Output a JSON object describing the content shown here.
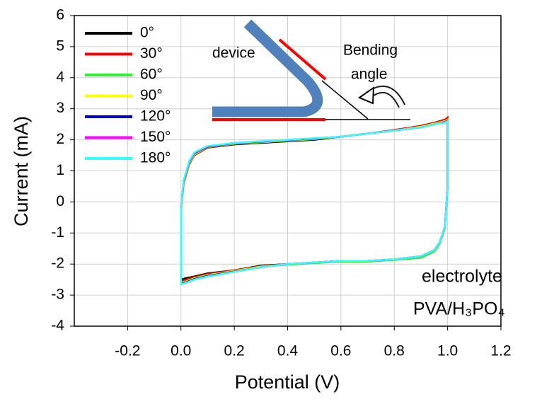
{
  "chart_data": {
    "type": "line",
    "xlabel": "Potential (V)",
    "ylabel": "Current (mA)",
    "xlim": [
      -0.4,
      1.2
    ],
    "xticks": [
      -0.2,
      {
        "value": 0,
        "label": "0.0"
      },
      0.2,
      0.4,
      0.6,
      0.8,
      {
        "value": 1,
        "label": "1.0"
      },
      1.2
    ],
    "ylim": [
      -4,
      6
    ],
    "yticks": [
      -4,
      -3,
      -2,
      -1,
      0,
      1,
      2,
      3,
      4,
      5,
      6
    ],
    "grid": true,
    "legend": "upper left",
    "annotations": [
      "device",
      "Bending",
      "angle",
      "electrolyte",
      "PVA/H₃PO₄"
    ],
    "x": [
      0.0,
      0.01,
      0.03,
      0.05,
      0.1,
      0.2,
      0.3,
      0.4,
      0.5,
      0.6,
      0.7,
      0.8,
      0.9,
      0.95,
      0.99,
      1.0,
      1.0,
      0.99,
      0.97,
      0.95,
      0.9,
      0.8,
      0.7,
      0.6,
      0.5,
      0.4,
      0.3,
      0.2,
      0.1,
      0.05,
      0.02,
      0.0,
      0.0
    ],
    "series": [
      {
        "name": "0°",
        "color": "#000000",
        "values": [
          -0.2,
          0.6,
          1.2,
          1.5,
          1.75,
          1.85,
          1.9,
          1.95,
          2.0,
          2.1,
          2.2,
          2.3,
          2.45,
          2.55,
          2.65,
          2.7,
          0.5,
          -0.8,
          -1.3,
          -1.55,
          -1.75,
          -1.85,
          -1.9,
          -1.9,
          -1.95,
          -2.0,
          -2.05,
          -2.2,
          -2.3,
          -2.4,
          -2.45,
          -2.5,
          -0.2
        ]
      },
      {
        "name": "30°",
        "color": "#ff0000",
        "values": [
          -0.2,
          0.6,
          1.2,
          1.5,
          1.75,
          1.87,
          1.92,
          1.97,
          2.02,
          2.1,
          2.2,
          2.32,
          2.45,
          2.55,
          2.65,
          2.72,
          0.5,
          -0.8,
          -1.3,
          -1.55,
          -1.75,
          -1.85,
          -1.9,
          -1.9,
          -1.95,
          -2.0,
          -2.07,
          -2.2,
          -2.32,
          -2.42,
          -2.5,
          -2.55,
          -0.2
        ]
      },
      {
        "name": "60°",
        "color": "#33ee33",
        "values": [
          -0.2,
          0.62,
          1.22,
          1.52,
          1.77,
          1.87,
          1.92,
          1.97,
          2.02,
          2.1,
          2.2,
          2.3,
          2.42,
          2.52,
          2.6,
          2.65,
          0.45,
          -0.85,
          -1.35,
          -1.6,
          -1.8,
          -1.87,
          -1.92,
          -1.92,
          -1.97,
          -2.02,
          -2.08,
          -2.22,
          -2.35,
          -2.45,
          -2.55,
          -2.6,
          -0.2
        ]
      },
      {
        "name": "90°",
        "color": "#ffff00",
        "values": [
          -0.2,
          0.65,
          1.25,
          1.55,
          1.78,
          1.88,
          1.93,
          1.98,
          2.03,
          2.1,
          2.2,
          2.3,
          2.42,
          2.52,
          2.6,
          2.65,
          0.5,
          -0.8,
          -1.3,
          -1.55,
          -1.75,
          -1.85,
          -1.9,
          -1.9,
          -1.95,
          -2.0,
          -2.08,
          -2.22,
          -2.36,
          -2.46,
          -2.56,
          -2.6,
          -0.2
        ]
      },
      {
        "name": "120°",
        "color": "#0000cc",
        "values": [
          -0.2,
          0.67,
          1.27,
          1.57,
          1.78,
          1.89,
          1.94,
          1.99,
          2.04,
          2.1,
          2.2,
          2.3,
          2.4,
          2.5,
          2.57,
          2.62,
          0.5,
          -0.8,
          -1.3,
          -1.55,
          -1.75,
          -1.85,
          -1.9,
          -1.9,
          -1.95,
          -2.0,
          -2.1,
          -2.24,
          -2.38,
          -2.48,
          -2.58,
          -2.63,
          -0.2
        ]
      },
      {
        "name": "150°",
        "color": "#ff00ff",
        "values": [
          -0.2,
          0.68,
          1.28,
          1.58,
          1.79,
          1.9,
          1.95,
          2.0,
          2.05,
          2.1,
          2.2,
          2.3,
          2.4,
          2.5,
          2.56,
          2.61,
          0.5,
          -0.8,
          -1.3,
          -1.55,
          -1.75,
          -1.85,
          -1.9,
          -1.9,
          -1.95,
          -2.0,
          -2.1,
          -2.25,
          -2.4,
          -2.5,
          -2.6,
          -2.65,
          -0.2
        ]
      },
      {
        "name": "180°",
        "color": "#33ffff",
        "values": [
          -0.2,
          0.7,
          1.3,
          1.6,
          1.8,
          1.9,
          1.95,
          2.0,
          2.05,
          2.1,
          2.2,
          2.3,
          2.4,
          2.5,
          2.55,
          2.6,
          0.5,
          -0.8,
          -1.3,
          -1.55,
          -1.75,
          -1.85,
          -1.9,
          -1.9,
          -1.95,
          -2.0,
          -2.1,
          -2.25,
          -2.4,
          -2.5,
          -2.6,
          -2.65,
          -0.2
        ]
      }
    ]
  }
}
